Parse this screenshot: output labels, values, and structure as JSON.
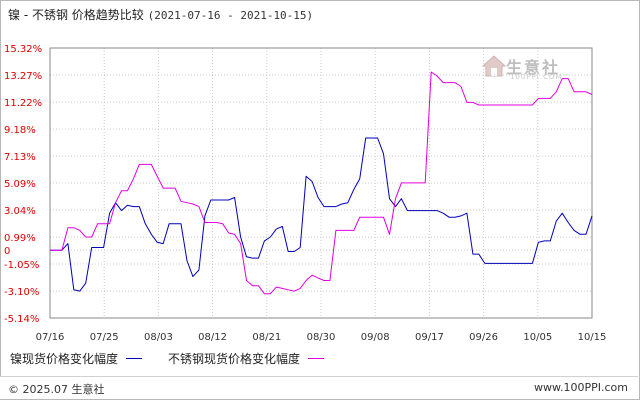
{
  "header": {
    "title": "镍 - 不锈钢 价格趋势比较",
    "date_range": "(2021-07-16 - 2021-10-15)"
  },
  "watermark": {
    "text": "生意社",
    "sub": "100PPI.COM"
  },
  "footer": {
    "copyright": "© 2025.07 生意社",
    "site": "www.100PPI.com"
  },
  "colors": {
    "nickel": "#0000bb",
    "stainless": "#e000e0",
    "axis_label": "#e00000",
    "grid": "#cccccc"
  },
  "chart_data": {
    "type": "line",
    "title": "镍 - 不锈钢 价格趋势比较",
    "subtitle": "(2021-07-16 - 2021-10-15)",
    "xlabel": "",
    "ylabel": "",
    "x_ticks": [
      "07/16",
      "07/25",
      "08/03",
      "08/12",
      "08/21",
      "08/30",
      "09/08",
      "09/17",
      "09/26",
      "10/05",
      "10/15"
    ],
    "y_ticks": [
      "15.32%",
      "13.27%",
      "11.22%",
      "9.18%",
      "7.13%",
      "5.09%",
      "3.04%",
      "0.99%",
      "0",
      "-1.05%",
      "-3.10%",
      "-5.14%"
    ],
    "y_tick_values": [
      15.32,
      13.27,
      11.22,
      9.18,
      7.13,
      5.09,
      3.04,
      0.99,
      0,
      -1.05,
      -3.1,
      -5.14
    ],
    "ylim": [
      -5.14,
      15.32
    ],
    "xlim": [
      0,
      91
    ],
    "grid": true,
    "legend_position": "bottom",
    "series": [
      {
        "name": "镍现货价格变化幅度",
        "color": "#0000bb",
        "points": [
          [
            0,
            0
          ],
          [
            1,
            0
          ],
          [
            2,
            0
          ],
          [
            3,
            0.5
          ],
          [
            4,
            -3.0
          ],
          [
            5,
            -3.1
          ],
          [
            6,
            -2.5
          ],
          [
            7,
            0.2
          ],
          [
            8,
            0.2
          ],
          [
            9,
            0.2
          ],
          [
            10,
            2.8
          ],
          [
            11,
            3.6
          ],
          [
            12,
            3.0
          ],
          [
            13,
            3.4
          ],
          [
            14,
            3.3
          ],
          [
            15,
            3.3
          ],
          [
            16,
            2.0
          ],
          [
            17,
            1.2
          ],
          [
            18,
            0.6
          ],
          [
            19,
            0.5
          ],
          [
            20,
            2.0
          ],
          [
            21,
            2.0
          ],
          [
            22,
            2.0
          ],
          [
            23,
            -0.8
          ],
          [
            24,
            -2.0
          ],
          [
            25,
            -1.5
          ],
          [
            26,
            2.6
          ],
          [
            27,
            3.8
          ],
          [
            28,
            3.8
          ],
          [
            29,
            3.8
          ],
          [
            30,
            3.8
          ],
          [
            31,
            4.0
          ],
          [
            32,
            1.0
          ],
          [
            33,
            -0.5
          ],
          [
            34,
            -0.6
          ],
          [
            35,
            -0.6
          ],
          [
            36,
            0.7
          ],
          [
            37,
            1.0
          ],
          [
            38,
            1.6
          ],
          [
            39,
            1.8
          ],
          [
            40,
            -0.1
          ],
          [
            41,
            -0.1
          ],
          [
            42,
            0.2
          ],
          [
            43,
            5.6
          ],
          [
            44,
            5.2
          ],
          [
            45,
            4.0
          ],
          [
            46,
            3.3
          ],
          [
            47,
            3.3
          ],
          [
            48,
            3.3
          ],
          [
            49,
            3.5
          ],
          [
            50,
            3.6
          ],
          [
            51,
            4.6
          ],
          [
            52,
            5.4
          ],
          [
            53,
            8.5
          ],
          [
            54,
            8.5
          ],
          [
            55,
            8.5
          ],
          [
            56,
            7.3
          ],
          [
            57,
            3.9
          ],
          [
            58,
            3.3
          ],
          [
            59,
            3.9
          ],
          [
            60,
            3.0
          ],
          [
            61,
            3.0
          ],
          [
            62,
            3.0
          ],
          [
            63,
            3.0
          ],
          [
            64,
            3.0
          ],
          [
            65,
            3.0
          ],
          [
            66,
            2.8
          ],
          [
            67,
            2.5
          ],
          [
            68,
            2.5
          ],
          [
            69,
            2.6
          ],
          [
            70,
            2.8
          ],
          [
            71,
            -0.3
          ],
          [
            72,
            -0.3
          ],
          [
            73,
            -1.0
          ],
          [
            74,
            -1.0
          ],
          [
            75,
            -1.0
          ],
          [
            76,
            -1.0
          ],
          [
            77,
            -1.0
          ],
          [
            78,
            -1.0
          ],
          [
            79,
            -1.0
          ],
          [
            80,
            -1.0
          ],
          [
            81,
            -1.0
          ],
          [
            82,
            0.6
          ],
          [
            83,
            0.7
          ],
          [
            84,
            0.7
          ],
          [
            85,
            2.2
          ],
          [
            86,
            2.8
          ],
          [
            87,
            2.1
          ],
          [
            88,
            1.5
          ],
          [
            89,
            1.2
          ],
          [
            90,
            1.2
          ],
          [
            91,
            2.6
          ]
        ]
      },
      {
        "name": "不锈钢现货价格变化幅度",
        "color": "#e000e0",
        "points": [
          [
            0,
            0
          ],
          [
            1,
            0
          ],
          [
            2,
            0
          ],
          [
            3,
            1.7
          ],
          [
            4,
            1.7
          ],
          [
            5,
            1.5
          ],
          [
            6,
            1.0
          ],
          [
            7,
            1.0
          ],
          [
            8,
            2.0
          ],
          [
            9,
            2.0
          ],
          [
            10,
            2.0
          ],
          [
            11,
            3.6
          ],
          [
            12,
            4.5
          ],
          [
            13,
            4.5
          ],
          [
            14,
            5.4
          ],
          [
            15,
            6.5
          ],
          [
            16,
            6.5
          ],
          [
            17,
            6.5
          ],
          [
            18,
            5.6
          ],
          [
            19,
            4.7
          ],
          [
            20,
            4.7
          ],
          [
            21,
            4.7
          ],
          [
            22,
            3.7
          ],
          [
            23,
            3.6
          ],
          [
            24,
            3.5
          ],
          [
            25,
            3.3
          ],
          [
            26,
            2.1
          ],
          [
            27,
            2.1
          ],
          [
            28,
            2.1
          ],
          [
            29,
            2.0
          ],
          [
            30,
            1.3
          ],
          [
            31,
            1.2
          ],
          [
            32,
            0.5
          ],
          [
            33,
            -2.3
          ],
          [
            34,
            -2.7
          ],
          [
            35,
            -2.7
          ],
          [
            36,
            -3.3
          ],
          [
            37,
            -3.3
          ],
          [
            38,
            -2.8
          ],
          [
            39,
            -2.9
          ],
          [
            40,
            -3.0
          ],
          [
            41,
            -3.1
          ],
          [
            42,
            -2.9
          ],
          [
            43,
            -2.3
          ],
          [
            44,
            -1.9
          ],
          [
            45,
            -2.1
          ],
          [
            46,
            -2.3
          ],
          [
            47,
            -2.3
          ],
          [
            48,
            1.5
          ],
          [
            49,
            1.5
          ],
          [
            50,
            1.5
          ],
          [
            51,
            1.5
          ],
          [
            52,
            2.5
          ],
          [
            53,
            2.5
          ],
          [
            54,
            2.5
          ],
          [
            55,
            2.5
          ],
          [
            56,
            2.5
          ],
          [
            57,
            1.2
          ],
          [
            58,
            3.9
          ],
          [
            59,
            5.1
          ],
          [
            60,
            5.1
          ],
          [
            61,
            5.1
          ],
          [
            62,
            5.1
          ],
          [
            63,
            5.1
          ],
          [
            64,
            13.5
          ],
          [
            65,
            13.2
          ],
          [
            66,
            12.7
          ],
          [
            67,
            12.7
          ],
          [
            68,
            12.7
          ],
          [
            69,
            12.4
          ],
          [
            70,
            11.2
          ],
          [
            71,
            11.2
          ],
          [
            72,
            11.0
          ],
          [
            73,
            11.0
          ],
          [
            74,
            11.0
          ],
          [
            75,
            11.0
          ],
          [
            76,
            11.0
          ],
          [
            77,
            11.0
          ],
          [
            78,
            11.0
          ],
          [
            79,
            11.0
          ],
          [
            80,
            11.0
          ],
          [
            81,
            11.0
          ],
          [
            82,
            11.5
          ],
          [
            83,
            11.5
          ],
          [
            84,
            11.5
          ],
          [
            85,
            12.0
          ],
          [
            86,
            13.0
          ],
          [
            87,
            13.0
          ],
          [
            88,
            12.0
          ],
          [
            89,
            12.0
          ],
          [
            90,
            12.0
          ],
          [
            91,
            11.8
          ]
        ]
      }
    ]
  }
}
